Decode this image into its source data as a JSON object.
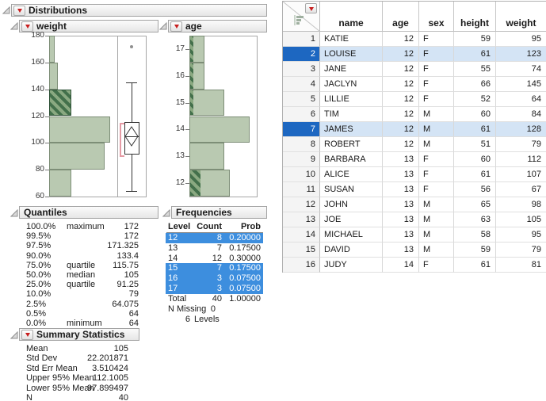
{
  "outline": {
    "distributions": "Distributions",
    "weight": "weight",
    "age": "age",
    "quantiles": "Quantiles",
    "summary": "Summary Statistics",
    "frequencies": "Frequencies"
  },
  "colors": {
    "bar_fill": "#b9c9b1",
    "bar_border": "#7d8e77",
    "selection_hatch_dark": "#43704b",
    "selection_hatch_light": "#8aa981",
    "row_highlight": "#d4e4f5",
    "row_number_selected": "#1d67c1",
    "freq_highlight": "#3d8ede",
    "bracket_red": "#e59aa4"
  },
  "chart_data": [
    {
      "type": "bar",
      "title": "weight",
      "orientation": "horizontal-histogram",
      "ylabel": "weight",
      "axis": {
        "min": 60,
        "max": 180,
        "ticks": [
          180,
          160,
          140,
          120,
          100,
          80,
          60
        ]
      },
      "bins": [
        {
          "lo": 160,
          "hi": 180,
          "count": 1,
          "selected": 0
        },
        {
          "lo": 140,
          "hi": 160,
          "count": 1.5,
          "selected": 0
        },
        {
          "lo": 120,
          "hi": 140,
          "count": 4,
          "selected": 4
        },
        {
          "lo": 100,
          "hi": 120,
          "count": 11,
          "selected": 0
        },
        {
          "lo": 80,
          "hi": 100,
          "count": 10,
          "selected": 0
        },
        {
          "lo": 60,
          "hi": 80,
          "count": 4,
          "selected": 0
        }
      ],
      "boxplot": {
        "outlier": 172,
        "whisker_high": 145,
        "q3": 115.75,
        "median": 105,
        "q1": 91.25,
        "whisker_low": 64,
        "mean_ci": [
          97.9,
          112.1
        ],
        "shortest_half": [
          92,
          115
        ]
      }
    },
    {
      "type": "bar",
      "title": "age",
      "orientation": "horizontal-histogram",
      "ylabel": "age",
      "axis": {
        "ticks": [
          17,
          16,
          15,
          14,
          13,
          12
        ]
      },
      "bins": [
        {
          "label": "17",
          "count": 3,
          "selected": 0.6
        },
        {
          "label": "16",
          "count": 3,
          "selected": 0.6
        },
        {
          "label": "15",
          "count": 7,
          "selected": 0.6
        },
        {
          "label": "14",
          "count": 12,
          "selected": 0
        },
        {
          "label": "13",
          "count": 7,
          "selected": 0
        },
        {
          "label": "12",
          "count": 8,
          "selected": 2
        }
      ]
    }
  ],
  "quantiles": {
    "rows": [
      {
        "pct": "100.0%",
        "label": "maximum",
        "value": "172"
      },
      {
        "pct": "99.5%",
        "label": "",
        "value": "172"
      },
      {
        "pct": "97.5%",
        "label": "",
        "value": "171.325"
      },
      {
        "pct": "90.0%",
        "label": "",
        "value": "133.4"
      },
      {
        "pct": "75.0%",
        "label": "quartile",
        "value": "115.75"
      },
      {
        "pct": "50.0%",
        "label": "median",
        "value": "105"
      },
      {
        "pct": "25.0%",
        "label": "quartile",
        "value": "91.25"
      },
      {
        "pct": "10.0%",
        "label": "",
        "value": "79"
      },
      {
        "pct": "2.5%",
        "label": "",
        "value": "64.075"
      },
      {
        "pct": "0.5%",
        "label": "",
        "value": "64"
      },
      {
        "pct": "0.0%",
        "label": "minimum",
        "value": "64"
      }
    ]
  },
  "summary": {
    "rows": [
      {
        "label": "Mean",
        "value": "105"
      },
      {
        "label": "Std Dev",
        "value": "22.201871"
      },
      {
        "label": "Std Err Mean",
        "value": "3.510424"
      },
      {
        "label": "Upper 95% Mean",
        "value": "112.1005"
      },
      {
        "label": "Lower 95% Mean",
        "value": "97.899497"
      },
      {
        "label": "N",
        "value": "40"
      }
    ]
  },
  "frequencies": {
    "headers": [
      "Level",
      "Count",
      "Prob"
    ],
    "rows": [
      {
        "level": "12",
        "count": "8",
        "prob": "0.20000",
        "selected": true
      },
      {
        "level": "13",
        "count": "7",
        "prob": "0.17500",
        "selected": false
      },
      {
        "level": "14",
        "count": "12",
        "prob": "0.30000",
        "selected": false
      },
      {
        "level": "15",
        "count": "7",
        "prob": "0.17500",
        "selected": true
      },
      {
        "level": "16",
        "count": "3",
        "prob": "0.07500",
        "selected": true
      },
      {
        "level": "17",
        "count": "3",
        "prob": "0.07500",
        "selected": true
      }
    ],
    "total": {
      "label": "Total",
      "count": "40",
      "prob": "1.00000"
    },
    "n_missing_label": "N Missing",
    "n_missing": "0",
    "n_levels": "6",
    "levels_label": "Levels"
  },
  "data_table": {
    "columns": [
      "name",
      "age",
      "sex",
      "height",
      "weight"
    ],
    "rows": [
      {
        "n": "1",
        "name": "KATIE",
        "age": "12",
        "sex": "F",
        "height": "59",
        "weight": "95",
        "selected": false
      },
      {
        "n": "2",
        "name": "LOUISE",
        "age": "12",
        "sex": "F",
        "height": "61",
        "weight": "123",
        "selected": true
      },
      {
        "n": "3",
        "name": "JANE",
        "age": "12",
        "sex": "F",
        "height": "55",
        "weight": "74",
        "selected": false
      },
      {
        "n": "4",
        "name": "JACLYN",
        "age": "12",
        "sex": "F",
        "height": "66",
        "weight": "145",
        "selected": false
      },
      {
        "n": "5",
        "name": "LILLIE",
        "age": "12",
        "sex": "F",
        "height": "52",
        "weight": "64",
        "selected": false
      },
      {
        "n": "6",
        "name": "TIM",
        "age": "12",
        "sex": "M",
        "height": "60",
        "weight": "84",
        "selected": false
      },
      {
        "n": "7",
        "name": "JAMES",
        "age": "12",
        "sex": "M",
        "height": "61",
        "weight": "128",
        "selected": true
      },
      {
        "n": "8",
        "name": "ROBERT",
        "age": "12",
        "sex": "M",
        "height": "51",
        "weight": "79",
        "selected": false
      },
      {
        "n": "9",
        "name": "BARBARA",
        "age": "13",
        "sex": "F",
        "height": "60",
        "weight": "112",
        "selected": false
      },
      {
        "n": "10",
        "name": "ALICE",
        "age": "13",
        "sex": "F",
        "height": "61",
        "weight": "107",
        "selected": false
      },
      {
        "n": "11",
        "name": "SUSAN",
        "age": "13",
        "sex": "F",
        "height": "56",
        "weight": "67",
        "selected": false
      },
      {
        "n": "12",
        "name": "JOHN",
        "age": "13",
        "sex": "M",
        "height": "65",
        "weight": "98",
        "selected": false
      },
      {
        "n": "13",
        "name": "JOE",
        "age": "13",
        "sex": "M",
        "height": "63",
        "weight": "105",
        "selected": false
      },
      {
        "n": "14",
        "name": "MICHAEL",
        "age": "13",
        "sex": "M",
        "height": "58",
        "weight": "95",
        "selected": false
      },
      {
        "n": "15",
        "name": "DAVID",
        "age": "13",
        "sex": "M",
        "height": "59",
        "weight": "79",
        "selected": false
      },
      {
        "n": "16",
        "name": "JUDY",
        "age": "14",
        "sex": "F",
        "height": "61",
        "weight": "81",
        "selected": false
      }
    ]
  }
}
